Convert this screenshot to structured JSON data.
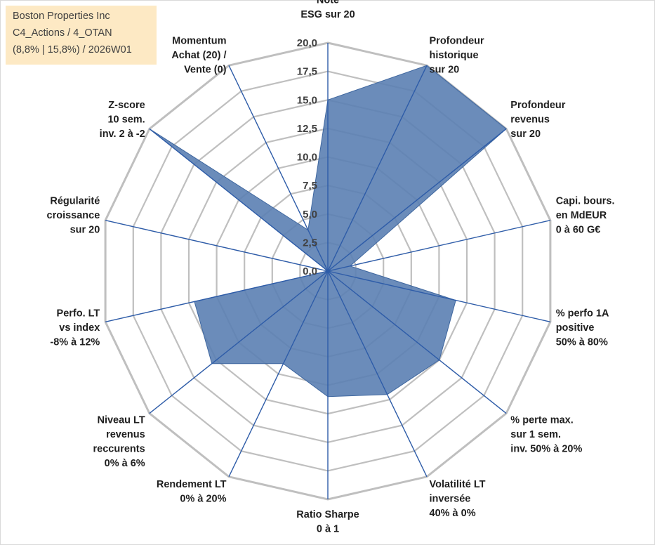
{
  "info": {
    "line1": "Boston Properties Inc",
    "line2": "C4_Actions / 4_OTAN",
    "line3": "(8,8% | 15,8%) / 2026W01"
  },
  "chart_data": {
    "type": "radar",
    "rmax": 20,
    "ticks": [
      "0,0",
      "2,5",
      "5,0",
      "7,5",
      "10,0",
      "12,5",
      "15,0",
      "17,5",
      "20,0"
    ],
    "grid": true,
    "fill_color": "#5b7fb3",
    "spoke_color": "#2e5ca8",
    "grid_color": "#bfbfbf",
    "axes": [
      {
        "label": [
          "Note",
          "ESG sur 20"
        ],
        "value": 15.0
      },
      {
        "label": [
          "Profondeur",
          "historique",
          "sur 20"
        ],
        "value": 20.0
      },
      {
        "label": [
          "Profondeur",
          "revenus",
          "sur 20"
        ],
        "value": 20.0
      },
      {
        "label": [
          "Capi. bours.",
          "en MdEUR",
          "0 à 60 G€"
        ],
        "value": 2.0
      },
      {
        "label": [
          "% perfo 1A",
          "positive",
          "50% à 80%"
        ],
        "value": 11.5
      },
      {
        "label": [
          "% perte max.",
          "sur 1 sem.",
          "inv. 50% à 20%"
        ],
        "value": 12.5
      },
      {
        "label": [
          "Volatilité LT",
          "inversée",
          "40% à 0%"
        ],
        "value": 12.0
      },
      {
        "label": [
          "Ratio Sharpe",
          "0 à 1"
        ],
        "value": 11.0
      },
      {
        "label": [
          "Rendement LT",
          "0% à 20%"
        ],
        "value": 9.0
      },
      {
        "label": [
          "Niveau LT",
          "revenus",
          "reccurents",
          "0% à 6%"
        ],
        "value": 13.0
      },
      {
        "label": [
          "Perfo. LT",
          "vs index",
          "-8% à 12%"
        ],
        "value": 12.0
      },
      {
        "label": [
          "Régularité",
          "croissance",
          "sur 20"
        ],
        "value": 0.0
      },
      {
        "label": [
          "Z-score",
          "10 sem.",
          "inv. 2 à -2"
        ],
        "value": 20.0
      },
      {
        "label": [
          "Momentum",
          "Achat (20) /",
          "Vente (0)"
        ],
        "value": 4.0
      }
    ]
  }
}
